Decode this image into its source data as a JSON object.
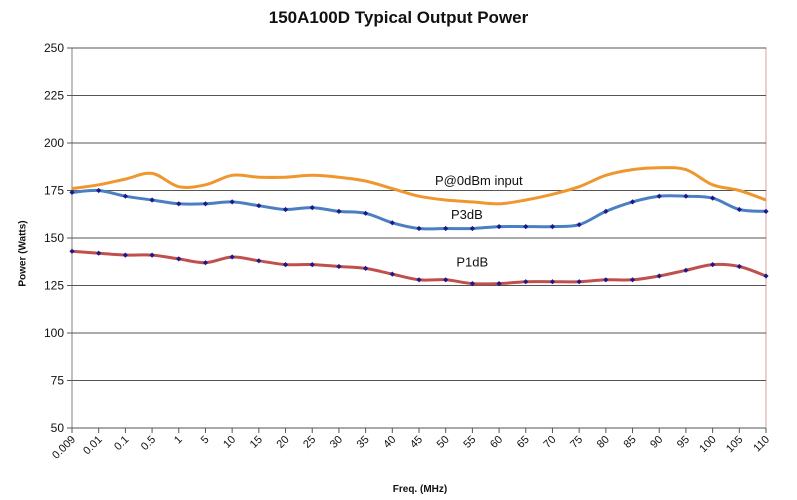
{
  "chart_data": {
    "type": "line",
    "title": "150A100D Typical Output Power",
    "xlabel": "Freq. (MHz)",
    "ylabel": "Power (Watts)",
    "categories": [
      "0.009",
      "0.01",
      "0.1",
      "0.5",
      "1",
      "5",
      "10",
      "15",
      "20",
      "25",
      "30",
      "35",
      "40",
      "45",
      "50",
      "55",
      "60",
      "65",
      "70",
      "75",
      "80",
      "85",
      "90",
      "95",
      "100",
      "105",
      "110"
    ],
    "ylim": [
      50,
      250
    ],
    "yticks": [
      50,
      75,
      100,
      125,
      150,
      175,
      200,
      225,
      250
    ],
    "grid": true,
    "series": [
      {
        "name": "P@0dBm input",
        "color": "#f0962e",
        "markers": false,
        "values": [
          176,
          178,
          181,
          184,
          177,
          178,
          183,
          182,
          182,
          183,
          182,
          180,
          176,
          172,
          170,
          169,
          168,
          170,
          173,
          177,
          183,
          186,
          187,
          186,
          178,
          175,
          170
        ]
      },
      {
        "name": "P3dB",
        "color": "#4a7fc1",
        "markers": true,
        "values": [
          174,
          175,
          172,
          170,
          168,
          168,
          169,
          167,
          165,
          166,
          164,
          163,
          158,
          155,
          155,
          155,
          156,
          156,
          156,
          157,
          164,
          169,
          172,
          172,
          171,
          165,
          164
        ]
      },
      {
        "name": "P1dB",
        "color": "#c0504d",
        "markers": true,
        "values": [
          143,
          142,
          141,
          141,
          139,
          137,
          140,
          138,
          136,
          136,
          135,
          134,
          131,
          128,
          128,
          126,
          126,
          127,
          127,
          127,
          128,
          128,
          130,
          133,
          136,
          135,
          130
        ]
      }
    ]
  }
}
